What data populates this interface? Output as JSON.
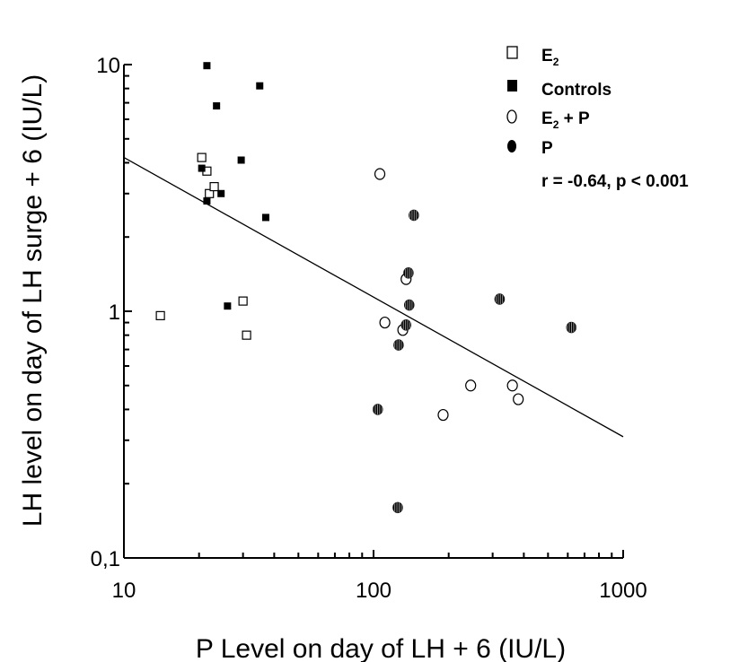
{
  "chart_data": {
    "type": "scatter",
    "xlabel": "P Level on day of LH + 6 (IU/L)",
    "ylabel": "LH level on day of LH surge + 6 (IU/L)",
    "x_scale": "log",
    "y_scale": "log",
    "xlim": [
      10,
      1000
    ],
    "ylim": [
      0.1,
      10
    ],
    "x_ticks": [
      10,
      100,
      1000
    ],
    "x_tick_labels": [
      "10",
      "100",
      "1000"
    ],
    "y_ticks": [
      0.1,
      1,
      10
    ],
    "y_tick_labels": [
      "0,1",
      "1",
      "10"
    ],
    "grid": false,
    "legend_position": "top-right",
    "series": [
      {
        "name": "E2",
        "name_main": "E",
        "name_sub": "2",
        "marker": "open-square",
        "points": [
          [
            14,
            0.96
          ],
          [
            20.5,
            4.2
          ],
          [
            21.5,
            3.7
          ],
          [
            22,
            3.0
          ],
          [
            23,
            3.2
          ],
          [
            30,
            1.1
          ],
          [
            31,
            0.8
          ]
        ]
      },
      {
        "name": "Controls",
        "name_main": "Controls",
        "name_sub": "",
        "marker": "filled-square",
        "points": [
          [
            21.5,
            9.9
          ],
          [
            20.5,
            3.8
          ],
          [
            21.5,
            2.8
          ],
          [
            23.5,
            6.8
          ],
          [
            24.5,
            3.0
          ],
          [
            26,
            1.05
          ],
          [
            29.5,
            4.1
          ],
          [
            35,
            8.2
          ],
          [
            37,
            2.4
          ]
        ]
      },
      {
        "name": "E2 + P",
        "name_main": "E",
        "name_sub": "2",
        "name_rest": " + P",
        "marker": "open-circle",
        "points": [
          [
            106,
            3.6
          ],
          [
            111,
            0.9
          ],
          [
            131,
            0.84
          ],
          [
            135,
            1.35
          ],
          [
            190,
            0.38
          ],
          [
            245,
            0.5
          ],
          [
            360,
            0.5
          ],
          [
            380,
            0.44
          ]
        ]
      },
      {
        "name": "P",
        "name_main": "P",
        "name_sub": "",
        "marker": "hatched-circle",
        "points": [
          [
            104,
            0.4
          ],
          [
            125,
            0.16
          ],
          [
            126,
            0.73
          ],
          [
            135,
            0.88
          ],
          [
            138,
            1.43
          ],
          [
            139,
            1.06
          ],
          [
            145,
            2.45
          ],
          [
            320,
            1.12
          ],
          [
            620,
            0.86
          ]
        ]
      }
    ],
    "regression": {
      "x": [
        10,
        1000
      ],
      "y": [
        4.2,
        0.31
      ]
    },
    "annotation": "r = -0.64, p < 0.001"
  }
}
